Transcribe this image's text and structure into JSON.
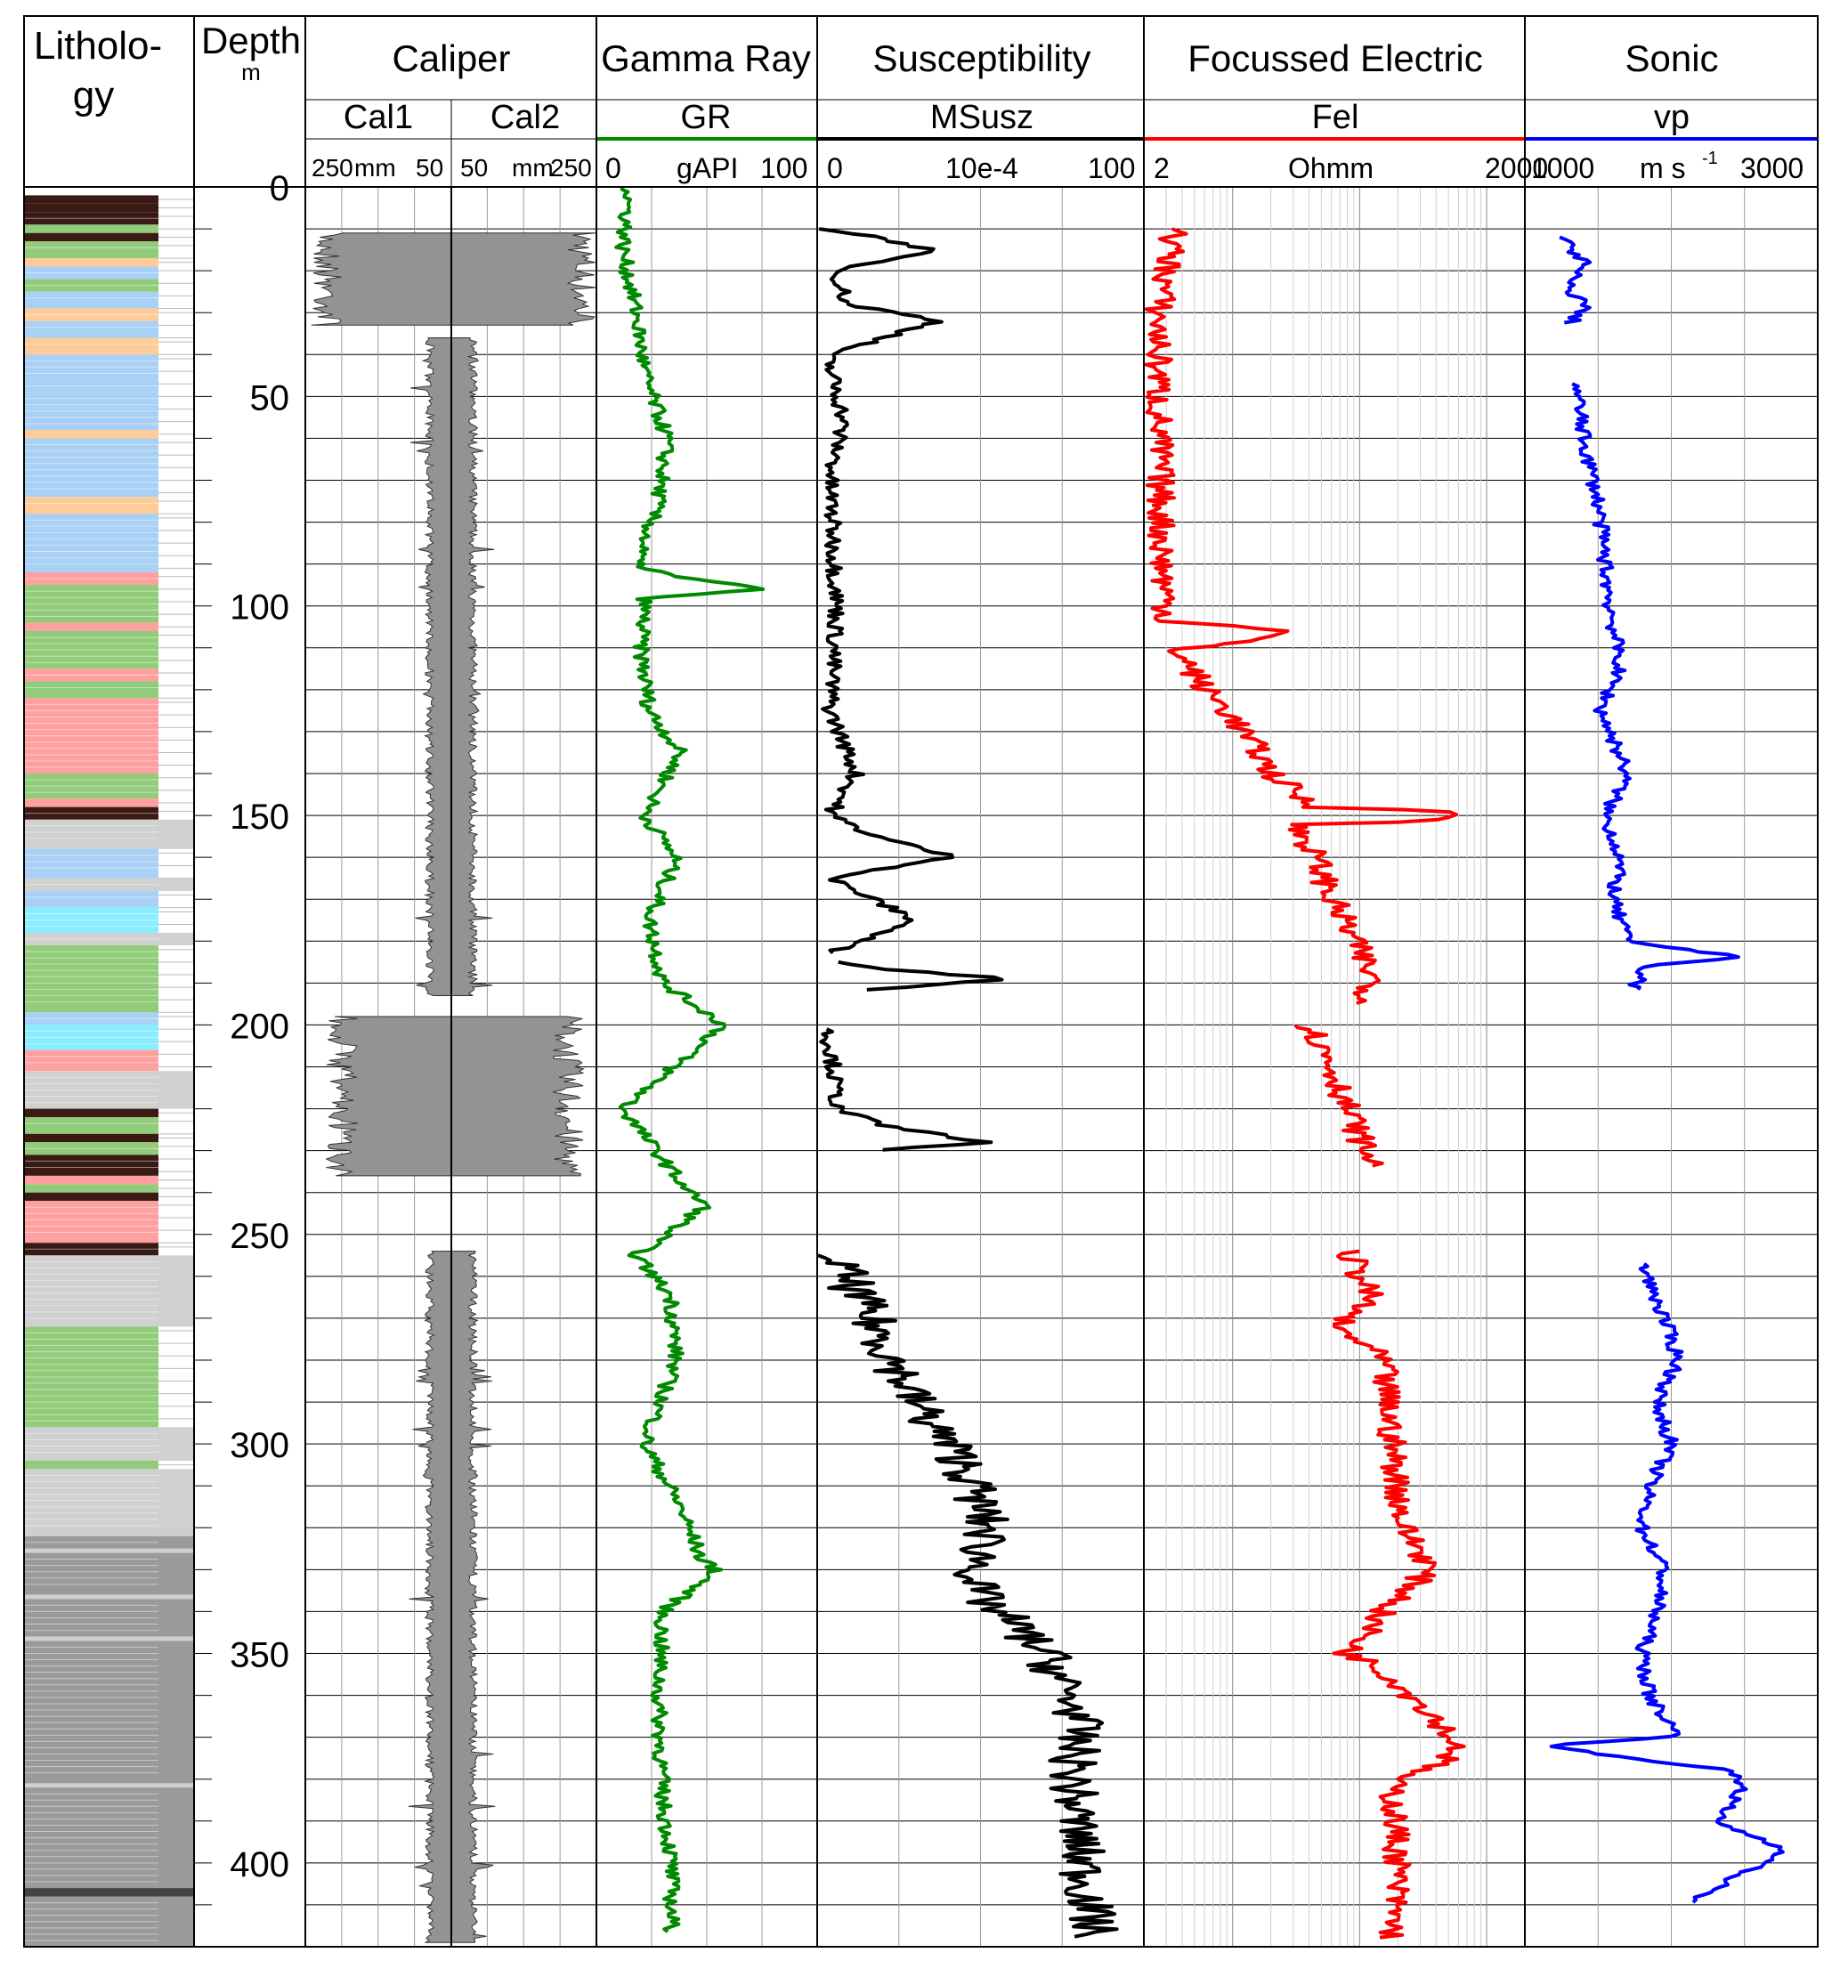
{
  "header": {
    "lithology_title_1": "Litholo-",
    "lithology_title_2": "gy",
    "depth_title": "Depth",
    "depth_unit": "m"
  },
  "tracks": [
    {
      "title": "Caliper",
      "curves": [
        {
          "name": "Cal1",
          "min_label": "250",
          "unit": "mm",
          "max_label": "50"
        },
        {
          "name": "Cal2",
          "min_label": "50",
          "unit": "mm",
          "max_label": "250"
        }
      ]
    },
    {
      "title": "Gamma Ray",
      "curve": "GR",
      "min_label": "0",
      "unit": "gAPI",
      "max_label": "100",
      "color": "#008a00"
    },
    {
      "title": "Susceptibility",
      "curve": "MSusz",
      "min_label": "0",
      "unit": "10e-4",
      "max_label": "100",
      "color": "#000000"
    },
    {
      "title": "Focussed Electric",
      "curve": "Fel",
      "min_label": "2",
      "unit": "Ohmm",
      "max_label": "2000",
      "color": "#ff0000"
    },
    {
      "title": "Sonic",
      "curve": "vp",
      "min_label": "1000",
      "unit": "m s",
      "unit_sup": "-1",
      "max_label": "3000",
      "color": "#0000ff"
    }
  ],
  "chart_data": {
    "type": "line",
    "y_axis": {
      "label": "Depth (m)",
      "range": [
        0,
        420
      ],
      "ticks": [
        0,
        50,
        100,
        150,
        200,
        250,
        300,
        350,
        400
      ],
      "inverted": true
    },
    "lithology_colors": {
      "dark": "#3a1a14",
      "green": "#92cc7a",
      "orange": "#ffcc99",
      "blue": "#a9d0f5",
      "pink": "#ffa0a0",
      "cyan": "#88eeff",
      "lightgray": "#d0d0d0",
      "gray": "#9a9a9a",
      "darkgray": "#444444"
    },
    "lithology": [
      {
        "top": 2,
        "base": 4,
        "color": "dark"
      },
      {
        "top": 4,
        "base": 6,
        "color": "dark"
      },
      {
        "top": 6,
        "base": 9,
        "color": "dark"
      },
      {
        "top": 9,
        "base": 11,
        "color": "green"
      },
      {
        "top": 11,
        "base": 13,
        "color": "dark"
      },
      {
        "top": 13,
        "base": 17,
        "color": "green"
      },
      {
        "top": 17,
        "base": 19,
        "color": "orange"
      },
      {
        "top": 19,
        "base": 22,
        "color": "blue"
      },
      {
        "top": 22,
        "base": 25,
        "color": "green"
      },
      {
        "top": 25,
        "base": 29,
        "color": "blue"
      },
      {
        "top": 29,
        "base": 32,
        "color": "orange"
      },
      {
        "top": 32,
        "base": 36,
        "color": "blue"
      },
      {
        "top": 36,
        "base": 40,
        "color": "orange"
      },
      {
        "top": 40,
        "base": 46,
        "color": "blue"
      },
      {
        "top": 46,
        "base": 49,
        "color": "blue"
      },
      {
        "top": 49,
        "base": 58,
        "color": "blue"
      },
      {
        "top": 58,
        "base": 60,
        "color": "orange"
      },
      {
        "top": 60,
        "base": 74,
        "color": "blue"
      },
      {
        "top": 74,
        "base": 78,
        "color": "orange"
      },
      {
        "top": 78,
        "base": 92,
        "color": "blue"
      },
      {
        "top": 92,
        "base": 95,
        "color": "pink"
      },
      {
        "top": 95,
        "base": 104,
        "color": "green"
      },
      {
        "top": 104,
        "base": 106,
        "color": "pink"
      },
      {
        "top": 106,
        "base": 115,
        "color": "green"
      },
      {
        "top": 115,
        "base": 118,
        "color": "pink"
      },
      {
        "top": 118,
        "base": 122,
        "color": "green"
      },
      {
        "top": 122,
        "base": 140,
        "color": "pink"
      },
      {
        "top": 140,
        "base": 146,
        "color": "green"
      },
      {
        "top": 146,
        "base": 148,
        "color": "pink"
      },
      {
        "top": 148,
        "base": 151,
        "color": "dark"
      },
      {
        "top": 151,
        "base": 158,
        "color": "lightgray"
      },
      {
        "top": 158,
        "base": 165,
        "color": "blue"
      },
      {
        "top": 165,
        "base": 168,
        "color": "lightgray"
      },
      {
        "top": 168,
        "base": 172,
        "color": "blue"
      },
      {
        "top": 172,
        "base": 178,
        "color": "cyan"
      },
      {
        "top": 178,
        "base": 181,
        "color": "lightgray"
      },
      {
        "top": 181,
        "base": 197,
        "color": "green"
      },
      {
        "top": 197,
        "base": 200,
        "color": "blue"
      },
      {
        "top": 200,
        "base": 206,
        "color": "cyan"
      },
      {
        "top": 206,
        "base": 211,
        "color": "pink"
      },
      {
        "top": 211,
        "base": 220,
        "color": "lightgray"
      },
      {
        "top": 220,
        "base": 222,
        "color": "dark"
      },
      {
        "top": 222,
        "base": 226,
        "color": "green"
      },
      {
        "top": 226,
        "base": 228,
        "color": "dark"
      },
      {
        "top": 228,
        "base": 231,
        "color": "green"
      },
      {
        "top": 231,
        "base": 236,
        "color": "dark"
      },
      {
        "top": 236,
        "base": 238,
        "color": "pink"
      },
      {
        "top": 238,
        "base": 240,
        "color": "green"
      },
      {
        "top": 240,
        "base": 242,
        "color": "dark"
      },
      {
        "top": 242,
        "base": 252,
        "color": "pink"
      },
      {
        "top": 252,
        "base": 255,
        "color": "dark"
      },
      {
        "top": 255,
        "base": 272,
        "color": "lightgray"
      },
      {
        "top": 272,
        "base": 296,
        "color": "green"
      },
      {
        "top": 296,
        "base": 304,
        "color": "lightgray"
      },
      {
        "top": 304,
        "base": 306,
        "color": "green"
      },
      {
        "top": 306,
        "base": 322,
        "color": "lightgray"
      },
      {
        "top": 322,
        "base": 325,
        "color": "gray"
      },
      {
        "top": 325,
        "base": 326,
        "color": "lightgray"
      },
      {
        "top": 326,
        "base": 336,
        "color": "gray"
      },
      {
        "top": 336,
        "base": 337,
        "color": "lightgray"
      },
      {
        "top": 337,
        "base": 346,
        "color": "gray"
      },
      {
        "top": 346,
        "base": 347,
        "color": "lightgray"
      },
      {
        "top": 347,
        "base": 381,
        "color": "gray"
      },
      {
        "top": 381,
        "base": 382,
        "color": "lightgray"
      },
      {
        "top": 382,
        "base": 406,
        "color": "gray"
      },
      {
        "top": 406,
        "base": 408,
        "color": "darkgray"
      },
      {
        "top": 408,
        "base": 420,
        "color": "gray"
      }
    ],
    "caliper": {
      "xlim_cal1": [
        250,
        50
      ],
      "xlim_cal2": [
        50,
        250
      ],
      "intervals": [
        {
          "top": 11,
          "base": 33,
          "cal1": 220,
          "cal2": 230
        },
        {
          "top": 36,
          "base": 193,
          "cal1": 80,
          "cal2": 80
        },
        {
          "top": 198,
          "base": 236,
          "cal1": 200,
          "cal2": 210
        },
        {
          "top": 254,
          "base": 419,
          "cal1": 80,
          "cal2": 80
        }
      ]
    },
    "series": [
      {
        "name": "GR",
        "unit": "gAPI",
        "xlim": [
          0,
          100
        ],
        "scale": "linear",
        "color": "#008a00",
        "depth": [
          0,
          15,
          30,
          45,
          60,
          75,
          90,
          93,
          96,
          98,
          110,
          125,
          135,
          150,
          160,
          175,
          190,
          200,
          220,
          240,
          243,
          255,
          265,
          280,
          300,
          315,
          328,
          330,
          340,
          360,
          385,
          400,
          417
        ],
        "values": [
          15,
          12,
          18,
          22,
          32,
          28,
          18,
          35,
          77,
          22,
          20,
          24,
          38,
          22,
          36,
          24,
          30,
          58,
          12,
          42,
          50,
          18,
          34,
          36,
          22,
          38,
          48,
          55,
          30,
          28,
          30,
          34,
          34
        ]
      },
      {
        "name": "MSusz",
        "unit": "10e-4",
        "xlim": [
          0,
          100
        ],
        "scale": "linear",
        "color": "#000000",
        "segments": [
          {
            "depth": [
              10,
              12,
              15,
              20,
              28,
              32,
              40,
              55,
              70,
              100,
              125,
              140,
              150,
              155,
              160,
              165,
              175,
              183
            ],
            "values": [
              2,
              18,
              35,
              6,
              9,
              38,
              3,
              8,
              4,
              6,
              4,
              12,
              4,
              18,
              42,
              4,
              30,
              3
            ]
          },
          {
            "depth": [
              185,
              187,
              189,
              192
            ],
            "values": [
              8,
              25,
              60,
              10
            ]
          },
          {
            "depth": [
              201,
              210,
              220,
              224,
              228,
              230
            ],
            "values": [
              3,
              5,
              6,
              20,
              52,
              14
            ]
          },
          {
            "depth": [
              255,
              275,
              290,
              305,
              320,
              335,
              350,
              365,
              380,
              395,
              418
            ],
            "values": [
              5,
              20,
              30,
              45,
              52,
              48,
              70,
              80,
              78,
              80,
              85
            ]
          }
        ]
      },
      {
        "name": "Fel",
        "unit": "Ohmm",
        "xlim": [
          2,
          2000
        ],
        "scale": "log",
        "color": "#ff0000",
        "segments": [
          {
            "depth": [
              10,
              30,
              50,
              70,
              90,
              100,
              104,
              106,
              110,
              120,
              130,
              140,
              148,
              150,
              152,
              160,
              170,
              180,
              185,
              190,
              195
            ],
            "values": [
              3.5,
              2.6,
              2.6,
              2.7,
              2.8,
              3,
              3,
              25,
              3.5,
              6,
              12,
              20,
              40,
              800,
              30,
              45,
              60,
              90,
              110,
              130,
              100
            ]
          },
          {
            "depth": [
              200,
              210,
              220,
              230,
              234
            ],
            "values": [
              40,
              60,
              80,
              110,
              140
            ]
          },
          {
            "depth": [
              254,
              265,
              272,
              280,
              300,
              320,
              329,
              340,
              350,
              360,
              373,
              380,
              400,
              418
            ],
            "values": [
              80,
              120,
              60,
              150,
              180,
              220,
              350,
              150,
              80,
              250,
              600,
              180,
              200,
              180
            ]
          }
        ]
      },
      {
        "name": "vp",
        "unit": "m s-1",
        "xlim": [
          1000,
          3000
        ],
        "scale": "linear",
        "color": "#0000ff",
        "segments": [
          {
            "depth": [
              12,
              18,
              24,
              28,
              33
            ],
            "values": [
              1250,
              1400,
              1280,
              1420,
              1300
            ]
          },
          {
            "depth": [
              47,
              60,
              75,
              90,
              100,
              114,
              125,
              140,
              150,
              160,
              170,
              180,
              184,
              186,
              192
            ],
            "values": [
              1350,
              1400,
              1500,
              1550,
              1580,
              1650,
              1520,
              1700,
              1550,
              1650,
              1600,
              1700,
              2500,
              1800,
              1750
            ]
          },
          {
            "depth": [
              257,
              270,
              280,
              290,
              300,
              310,
              320,
              330,
              340,
              350,
              360,
              370,
              372,
              378,
              382,
              390,
              397,
              404,
              410
            ],
            "values": [
              1800,
              1950,
              2050,
              1900,
              2000,
              1850,
              1800,
              1950,
              1900,
              1800,
              1850,
              2050,
              1100,
              2400,
              2500,
              2300,
              2800,
              2400,
              2100
            ]
          }
        ]
      }
    ]
  }
}
